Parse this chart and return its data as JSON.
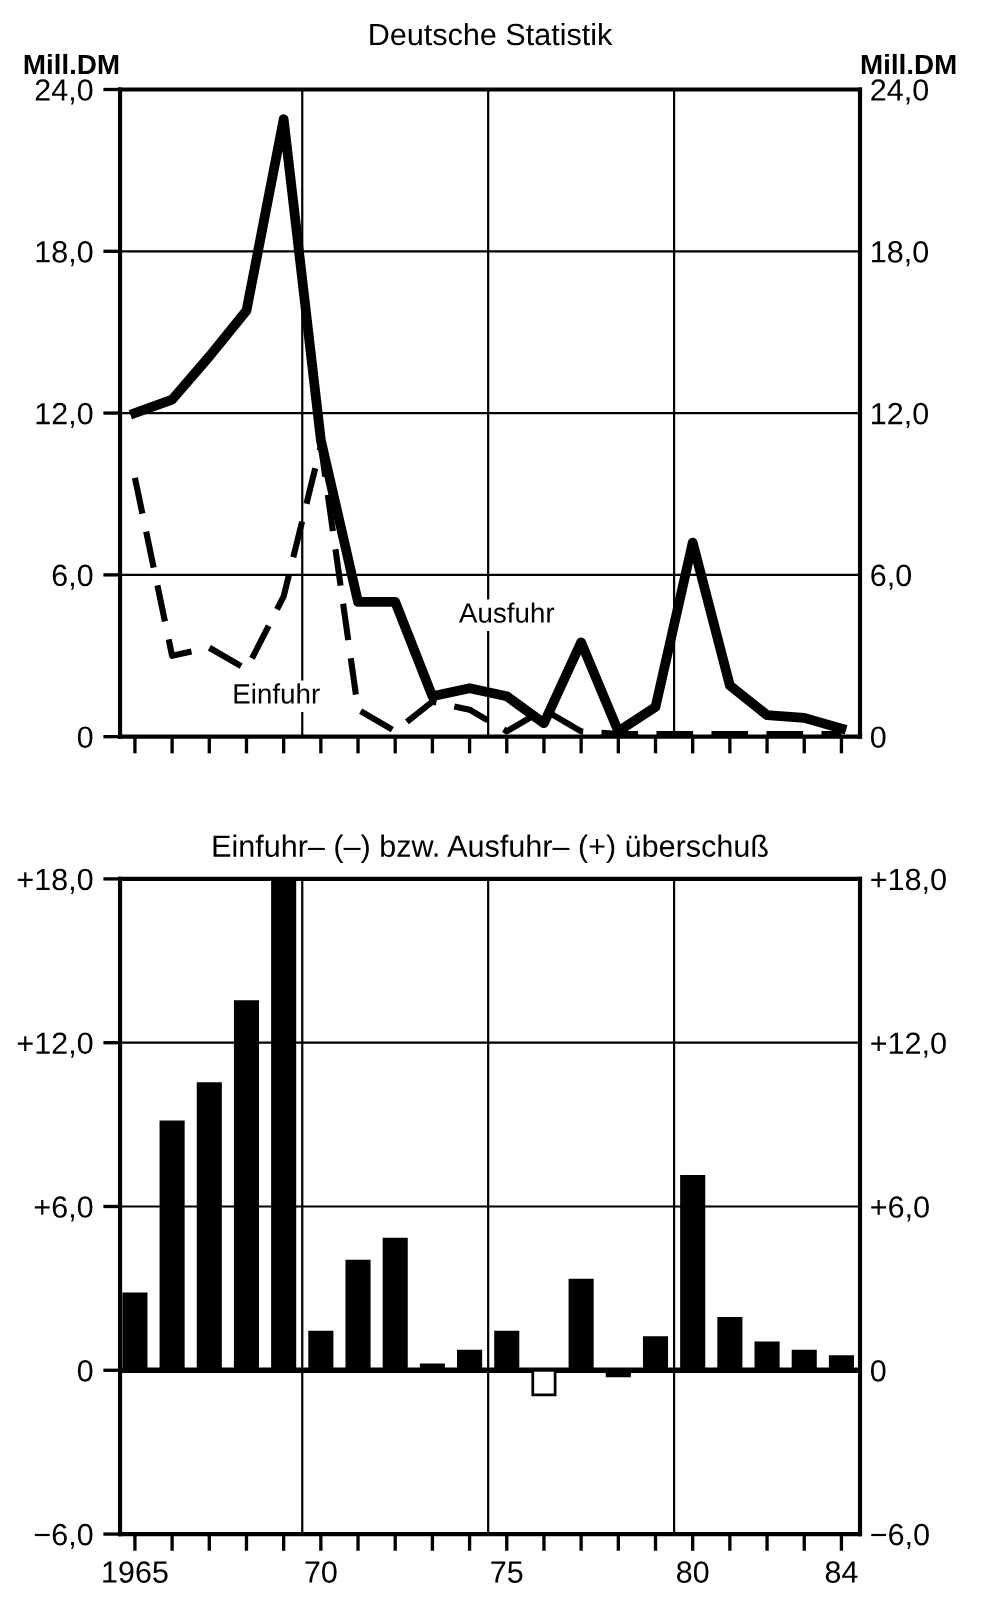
{
  "chart_data": [
    {
      "type": "line",
      "title": "Deutsche Statistik",
      "ylabel": "Mill.DM",
      "y2label": "Mill.DM",
      "x": [
        1965,
        1966,
        1967,
        1968,
        1969,
        1970,
        1971,
        1972,
        1973,
        1974,
        1975,
        1976,
        1977,
        1978,
        1979,
        1980,
        1981,
        1982,
        1983,
        1984
      ],
      "series": [
        {
          "name": "Ausfuhr",
          "color": "#000000",
          "line_style": "solid",
          "values": [
            12.0,
            12.5,
            14.1,
            15.8,
            22.9,
            11.0,
            5.0,
            5.0,
            1.5,
            1.8,
            1.5,
            0.5,
            3.5,
            0.2,
            1.1,
            7.2,
            1.9,
            0.8,
            0.7,
            0.3
          ]
        },
        {
          "name": "Einfuhr",
          "color": "#000000",
          "line_style": "dashed",
          "values": [
            9.6,
            3.0,
            3.3,
            2.5,
            5.2,
            10.8,
            1.0,
            0.2,
            1.3,
            1.0,
            0.2,
            1.0,
            0.2,
            0.1,
            0.1,
            0.1,
            0.1,
            0.1,
            0.1,
            0.1
          ]
        }
      ],
      "xlim": [
        1964.6,
        1984.5
      ],
      "xticks": [
        {
          "value": 1965,
          "label": null
        },
        {
          "value": 1966,
          "label": null
        },
        {
          "value": 1967,
          "label": null
        },
        {
          "value": 1968,
          "label": null
        },
        {
          "value": 1969,
          "label": null
        },
        {
          "value": 1970,
          "label": null
        },
        {
          "value": 1971,
          "label": null
        },
        {
          "value": 1972,
          "label": null
        },
        {
          "value": 1973,
          "label": null
        },
        {
          "value": 1974,
          "label": null
        },
        {
          "value": 1975,
          "label": null
        },
        {
          "value": 1976,
          "label": null
        },
        {
          "value": 1977,
          "label": null
        },
        {
          "value": 1978,
          "label": null
        },
        {
          "value": 1979,
          "label": null
        },
        {
          "value": 1980,
          "label": null
        },
        {
          "value": 1981,
          "label": null
        },
        {
          "value": 1982,
          "label": null
        },
        {
          "value": 1983,
          "label": null
        },
        {
          "value": 1984,
          "label": null
        }
      ],
      "ylim": [
        0,
        24
      ],
      "yticks": [
        0,
        {
          "value": 6,
          "label": "6,0"
        },
        {
          "value": 12,
          "label": "12,0"
        },
        {
          "value": 18,
          "label": "18,0"
        },
        {
          "value": 24,
          "label": "24,0"
        }
      ],
      "y2lim": [
        0,
        24
      ],
      "y2ticks": [
        0,
        {
          "value": 6,
          "label": "6,0"
        },
        {
          "value": 12,
          "label": "12,0"
        },
        {
          "value": 18,
          "label": "18,0"
        },
        {
          "value": 24,
          "label": "24,0"
        }
      ],
      "grid": "y",
      "legend": false,
      "tick_labels": "y",
      "ref_lines": [
        {
          "axis": "x",
          "value": 1969.5
        },
        {
          "axis": "x",
          "value": 1974.5
        },
        {
          "axis": "x",
          "value": 1979.5
        }
      ]
    },
    {
      "type": "bar",
      "title": "Einfuhr– (–) bzw. Ausfuhr– (+) überschuß",
      "x": [
        1965,
        1966,
        1967,
        1968,
        1969,
        1970,
        1971,
        1972,
        1973,
        1974,
        1975,
        1976,
        1977,
        1978,
        1979,
        1980,
        1981,
        1982,
        1983,
        1984
      ],
      "values": [
        2.8,
        9.1,
        10.5,
        13.5,
        17.9,
        1.4,
        4.0,
        4.8,
        0.2,
        0.7,
        1.4,
        -0.9,
        3.3,
        -0.2,
        1.2,
        7.1,
        1.9,
        1.0,
        0.7,
        0.5
      ],
      "colors": [
        "#000000",
        "#000000",
        "#000000",
        "#000000",
        "#000000",
        "#000000",
        "#000000",
        "#000000",
        "#000000",
        "#000000",
        "#000000",
        "#ffffff",
        "#000000",
        "#000000",
        "#000000",
        "#000000",
        "#000000",
        "#000000",
        "#000000",
        "#000000"
      ],
      "xlim": [
        1964.6,
        1984.5
      ],
      "xticks": [
        {
          "value": 1965,
          "label": "1965"
        },
        {
          "value": 1966,
          "label": null
        },
        {
          "value": 1967,
          "label": null
        },
        {
          "value": 1968,
          "label": null
        },
        {
          "value": 1969,
          "label": null
        },
        {
          "value": 1970,
          "label": "70"
        },
        {
          "value": 1971,
          "label": null
        },
        {
          "value": 1972,
          "label": null
        },
        {
          "value": 1973,
          "label": null
        },
        {
          "value": 1974,
          "label": null
        },
        {
          "value": 1975,
          "label": "75"
        },
        {
          "value": 1976,
          "label": null
        },
        {
          "value": 1977,
          "label": null
        },
        {
          "value": 1978,
          "label": null
        },
        {
          "value": 1979,
          "label": null
        },
        {
          "value": 1980,
          "label": "80"
        },
        {
          "value": 1981,
          "label": null
        },
        {
          "value": 1982,
          "label": null
        },
        {
          "value": 1983,
          "label": null
        },
        {
          "value": 1984,
          "label": "84"
        }
      ],
      "ylim": [
        -6,
        18
      ],
      "yticks": [
        {
          "value": -6,
          "label": "−6,0"
        },
        0,
        {
          "value": 6,
          "label": "+6,0"
        },
        {
          "value": 12,
          "label": "+12,0"
        },
        {
          "value": 18,
          "label": "+18,0"
        }
      ],
      "y2lim": [
        -6,
        18
      ],
      "y2ticks": [
        {
          "value": -6,
          "label": "−6,0"
        },
        0,
        {
          "value": 6,
          "label": "+6,0"
        },
        {
          "value": 12,
          "label": "+12,0"
        },
        {
          "value": 18,
          "label": "+18,0"
        }
      ],
      "grid": "y",
      "ref_lines": [
        {
          "axis": "x",
          "value": 1969.5
        },
        {
          "axis": "x",
          "value": 1974.5
        },
        {
          "axis": "x",
          "value": 1979.5
        },
        {
          "axis": "y",
          "value": 0
        }
      ]
    }
  ]
}
